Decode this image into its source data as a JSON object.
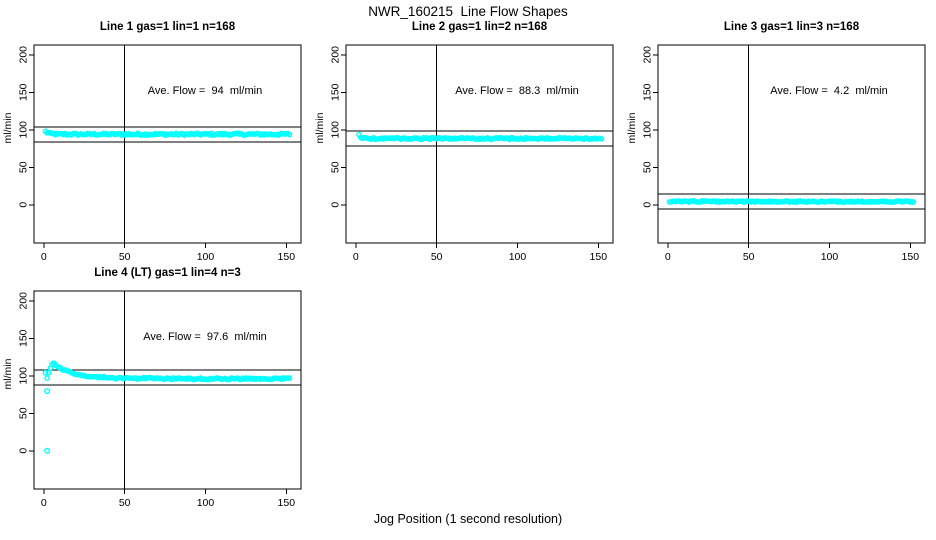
{
  "figure": {
    "title": "NWR_160215  Line Flow Shapes",
    "xlabel": "Jog Position (1 second resolution)",
    "background": "#ffffff",
    "axis_color": "#000000",
    "point_color": "#00ffff"
  },
  "chart_data": [
    {
      "type": "scatter",
      "title": "Line 1 gas=1 lin=1 n=168",
      "annotation": "Ave. Flow =  94  ml/min",
      "ave_flow": 94,
      "n": 168,
      "ylabel": "ml/min",
      "xlim": [
        -6.1,
        159.1
      ],
      "ylim": [
        -51,
        213
      ],
      "xticks": [
        0,
        50,
        100,
        150
      ],
      "yticks": [
        0,
        50,
        100,
        150,
        200
      ],
      "vline_x": 50,
      "hlines": [
        104,
        84
      ],
      "x_start": 1,
      "x_end": 152,
      "x_step": 1,
      "jitter": 1.4,
      "profile": [
        [
          1,
          97.5
        ],
        [
          2,
          96.5
        ],
        [
          3,
          95.5
        ],
        [
          5,
          94.5
        ],
        [
          8,
          94
        ],
        [
          152,
          94
        ]
      ],
      "outliers": []
    },
    {
      "type": "scatter",
      "title": "Line 2 gas=1 lin=2 n=168",
      "annotation": "Ave. Flow =  88.3  ml/min",
      "ave_flow": 88.3,
      "n": 168,
      "ylabel": "ml/min",
      "xlim": [
        -6.1,
        159.1
      ],
      "ylim": [
        -51,
        213
      ],
      "xticks": [
        0,
        50,
        100,
        150
      ],
      "yticks": [
        0,
        50,
        100,
        150,
        200
      ],
      "vline_x": 50,
      "hlines": [
        98.3,
        78.3
      ],
      "x_start": 2,
      "x_end": 152,
      "x_step": 1,
      "jitter": 1.1,
      "profile": [
        [
          2,
          92.5
        ],
        [
          3,
          90.5
        ],
        [
          4,
          89
        ],
        [
          6,
          88.4
        ],
        [
          10,
          88.3
        ],
        [
          152,
          88.3
        ]
      ],
      "outliers": []
    },
    {
      "type": "scatter",
      "title": "Line 3 gas=1 lin=3 n=168",
      "annotation": "Ave. Flow =  4.2  ml/min",
      "ave_flow": 4.2,
      "n": 168,
      "ylabel": "ml/min",
      "xlim": [
        -6.1,
        159.1
      ],
      "ylim": [
        -51,
        213
      ],
      "xticks": [
        0,
        50,
        100,
        150
      ],
      "yticks": [
        0,
        50,
        100,
        150,
        200
      ],
      "vline_x": 50,
      "hlines": [
        14.2,
        -5.8
      ],
      "x_start": 1,
      "x_end": 152,
      "x_step": 1,
      "jitter": 0.9,
      "profile": [
        [
          1,
          4.4
        ],
        [
          152,
          4.2
        ]
      ],
      "outliers": []
    },
    {
      "type": "scatter",
      "title": "Line 4 (LT) gas=1 lin=4 n=3",
      "annotation": "Ave. Flow =  97.6  ml/min",
      "ave_flow": 97.6,
      "n": 3,
      "ylabel": "ml/min",
      "xlim": [
        -6.1,
        159.1
      ],
      "ylim": [
        -51,
        213
      ],
      "xticks": [
        0,
        50,
        100,
        150
      ],
      "yticks": [
        0,
        50,
        100,
        150,
        200
      ],
      "vline_x": 50,
      "hlines": [
        107.6,
        87.6
      ],
      "x_start": 2,
      "x_end": 152,
      "x_step": 1,
      "jitter": 1.1,
      "profile": [
        [
          2,
          97
        ],
        [
          3,
          105
        ],
        [
          4,
          111
        ],
        [
          5,
          114.5
        ],
        [
          6,
          116
        ],
        [
          7,
          114.5
        ],
        [
          8,
          113
        ],
        [
          10,
          110.5
        ],
        [
          13,
          107.5
        ],
        [
          16,
          105
        ],
        [
          20,
          102.5
        ],
        [
          25,
          100.3
        ],
        [
          31,
          98.7
        ],
        [
          40,
          97.4
        ],
        [
          55,
          96.6
        ],
        [
          75,
          96.1
        ],
        [
          110,
          95.9
        ],
        [
          152,
          96.2
        ]
      ],
      "outliers": [
        [
          1,
          104
        ],
        [
          2,
          79.5
        ],
        [
          2,
          0
        ]
      ]
    }
  ]
}
